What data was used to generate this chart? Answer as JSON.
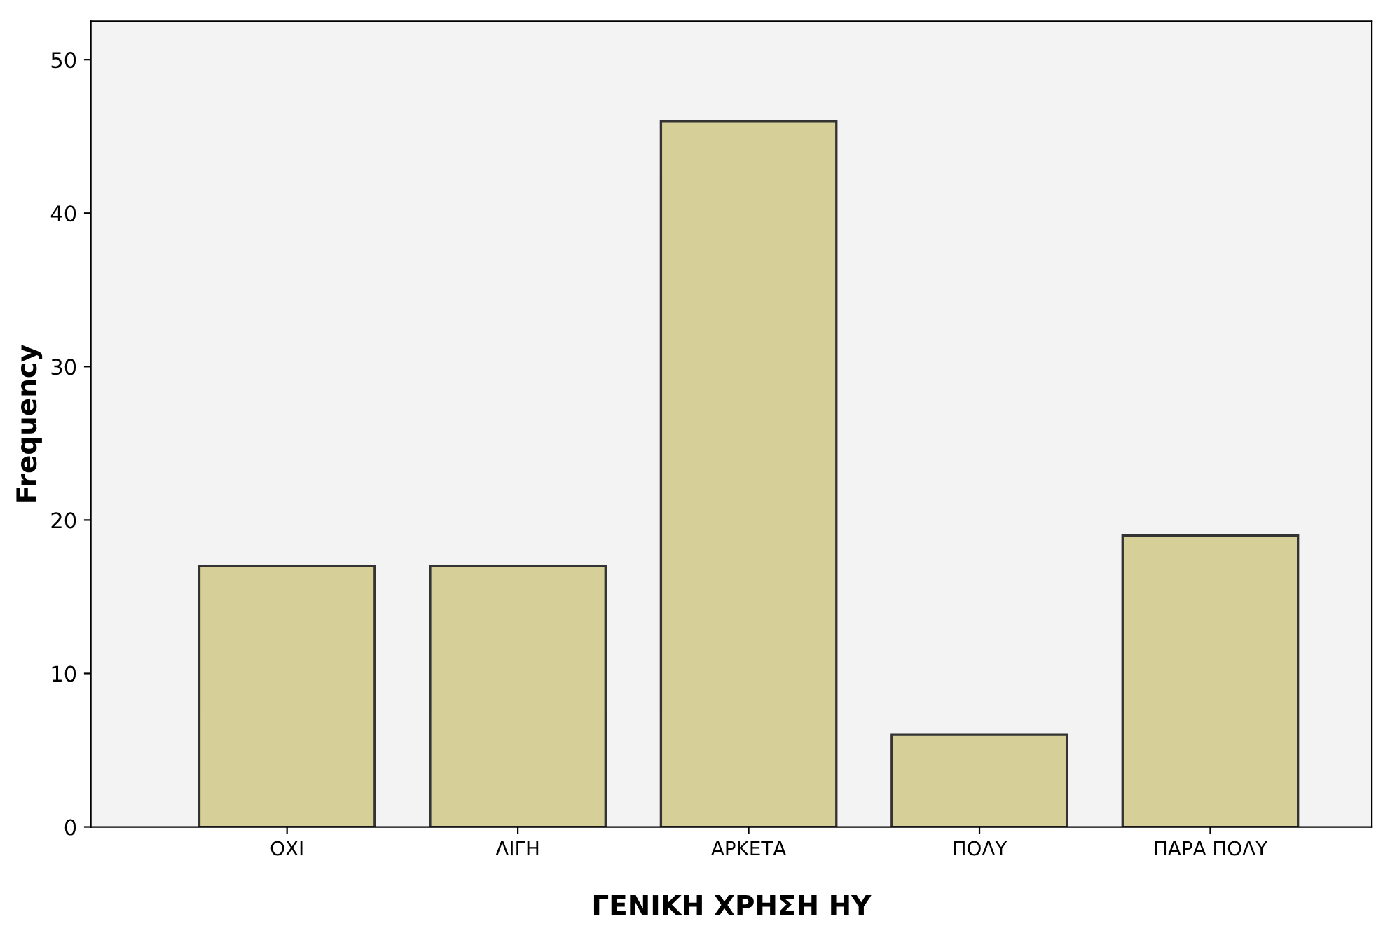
{
  "chart_data": {
    "type": "bar",
    "xlabel": "ΓΕΝΙΚΗ ΧΡΗΣΗ ΗΥ",
    "ylabel": "Frequency",
    "categories": [
      "ΟΧΙ",
      "ΛΙΓΗ",
      "ΑΡΚΕΤΑ",
      "ΠΟΛΥ",
      "ΠΑΡΑ ΠΟΛΥ"
    ],
    "values": [
      17,
      17,
      46,
      6,
      19
    ],
    "color": "#d6cf98",
    "ylim": [
      0,
      52.5
    ],
    "yticks": [
      0,
      10,
      20,
      30,
      40,
      50
    ],
    "grid": false,
    "legend": false
  }
}
